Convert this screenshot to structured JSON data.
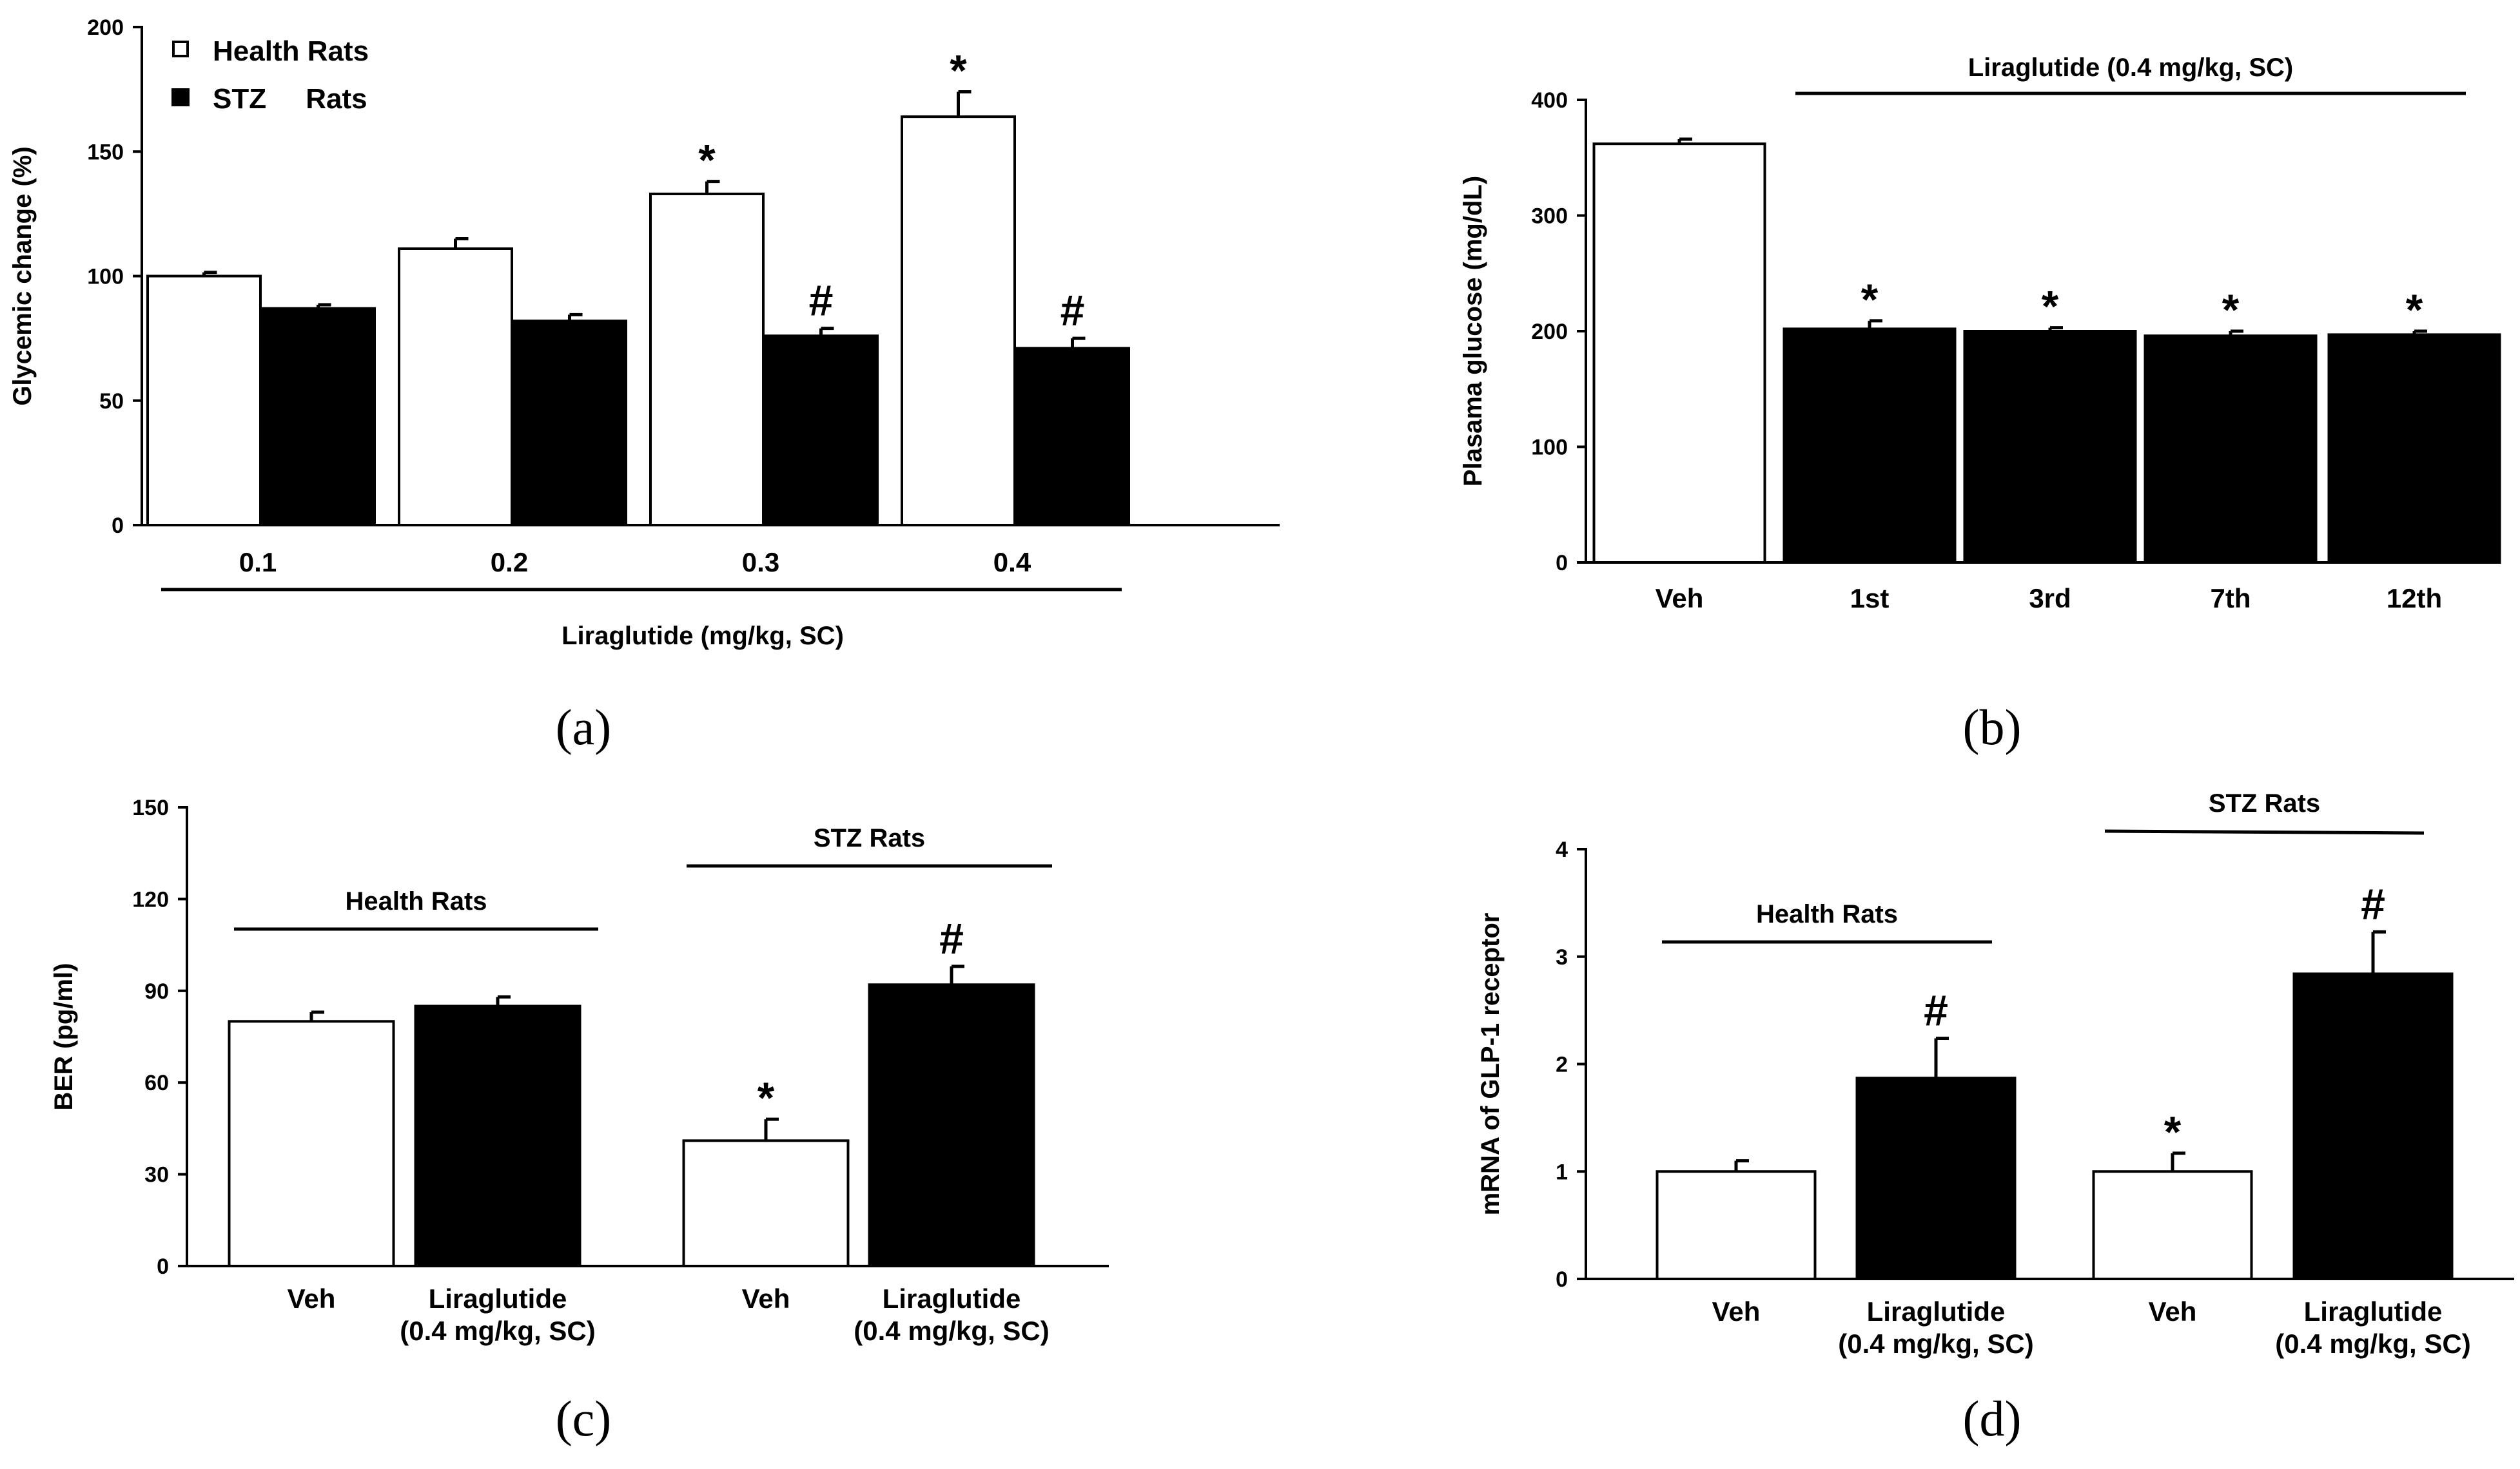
{
  "chart_data": [
    {
      "id": "a",
      "type": "bar",
      "caption": "(a)",
      "ylabel": "Glycemic change (%)",
      "xlabel": "Liraglutide (mg/kg, SC)",
      "ylim": [
        0,
        200
      ],
      "yticks": [
        "0",
        "50",
        "100",
        "150",
        "200"
      ],
      "categories": [
        "0.1",
        "0.2",
        "0.3",
        "0.4"
      ],
      "legend": {
        "position": "top-left",
        "entries": [
          "Health Rats",
          "STZ     Rats"
        ]
      },
      "series": [
        {
          "name": "Health Rats",
          "color": "#ffffff",
          "values": [
            100,
            111,
            133,
            164
          ],
          "errors": [
            1.5,
            4,
            5,
            10
          ],
          "markers": [
            "",
            "",
            "*",
            "*"
          ]
        },
        {
          "name": "STZ Rats",
          "color": "#000000",
          "values": [
            87,
            82,
            76,
            71
          ],
          "errors": [
            1.5,
            2.5,
            3,
            4
          ],
          "markers": [
            "",
            "",
            "#",
            "#"
          ]
        }
      ]
    },
    {
      "id": "b",
      "type": "bar",
      "caption": "(b)",
      "ylabel": "Plasama glucose (mg/dL)",
      "ylim": [
        0,
        400
      ],
      "yticks": [
        "0",
        "100",
        "200",
        "300",
        "400"
      ],
      "group_label": "Liraglutide (0.4 mg/kg, SC)",
      "categories": [
        "Veh",
        "1st",
        "3rd",
        "7th",
        "12th"
      ],
      "values": [
        362,
        202,
        200,
        196,
        197
      ],
      "errors": [
        4,
        7,
        3,
        4,
        3
      ],
      "colors": [
        "#ffffff",
        "#000000",
        "#000000",
        "#000000",
        "#000000"
      ],
      "markers": [
        "",
        "*",
        "*",
        "*",
        "*"
      ]
    },
    {
      "id": "c",
      "type": "bar",
      "caption": "(c)",
      "ylabel": "BER (pg/ml)",
      "ylim": [
        0,
        150
      ],
      "yticks": [
        "0",
        "30",
        "60",
        "90",
        "120",
        "150"
      ],
      "groups": [
        "Health Rats",
        "STZ Rats"
      ],
      "categories": [
        "Veh",
        "Liraglutide",
        "Veh",
        "Liraglutide"
      ],
      "sublabels": [
        "",
        "(0.4 mg/kg, SC)",
        "",
        "(0.4 mg/kg, SC)"
      ],
      "values": [
        80,
        85,
        41,
        92
      ],
      "errors": [
        3,
        3,
        7,
        6
      ],
      "colors": [
        "#ffffff",
        "#000000",
        "#ffffff",
        "#000000"
      ],
      "markers": [
        "",
        "",
        "*",
        "#"
      ]
    },
    {
      "id": "d",
      "type": "bar",
      "caption": "(d)",
      "ylabel": "mRNA of GLP-1 receptor",
      "ylim": [
        0,
        4
      ],
      "yticks": [
        "0",
        "1",
        "2",
        "3",
        "4"
      ],
      "groups": [
        "Health Rats",
        "STZ Rats"
      ],
      "categories": [
        "Veh",
        "Liraglutide",
        "Veh",
        "Liraglutide"
      ],
      "sublabels": [
        "",
        "(0.4 mg/kg, SC)",
        "",
        "(0.4 mg/kg, SC)"
      ],
      "values": [
        1.0,
        1.87,
        1.0,
        2.84
      ],
      "errors": [
        0.1,
        0.37,
        0.17,
        0.39
      ],
      "colors": [
        "#ffffff",
        "#000000",
        "#ffffff",
        "#000000"
      ],
      "markers": [
        "",
        "#",
        "*",
        "#"
      ]
    }
  ]
}
